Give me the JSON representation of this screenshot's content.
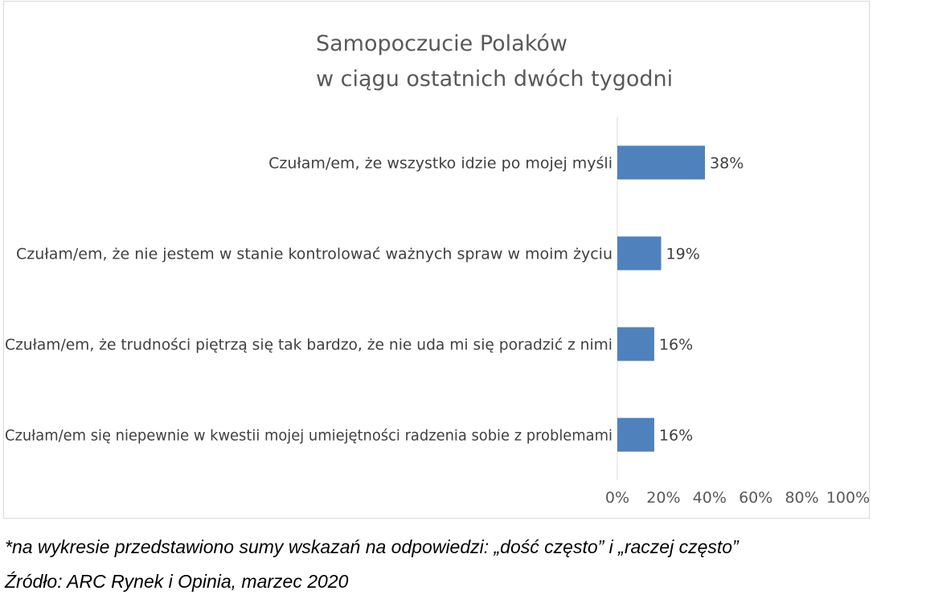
{
  "chart_data": {
    "type": "bar",
    "orientation": "horizontal",
    "title": [
      "Samopoczucie Polaków",
      "w ciągu ostatnich dwóch tygodni"
    ],
    "categories": [
      "Czułam/em, że wszystko idzie po mojej myśli",
      "Czułam/em, że nie jestem w stanie kontrolować ważnych spraw w moim życiu",
      "Czułam/em, że trudności piętrzą się tak bardzo, że nie uda mi się poradzić z nimi",
      "Czułam/em się niepewnie w kwestii mojej umiejętności radzenia sobie z problemami"
    ],
    "values": [
      38,
      19,
      16,
      16
    ],
    "data_labels": [
      "38%",
      "19%",
      "16%",
      "16%"
    ],
    "xlim": [
      0,
      100
    ],
    "x_ticks": [
      "0%",
      "20%",
      "40%",
      "60%",
      "80%",
      "100%"
    ],
    "grid": false,
    "bar_color": "#4f81bd"
  },
  "notes": {
    "footnote": "*na wykresie przedstawiono sumy wskazań na odpowiedzi: „dość często” i „raczej często”",
    "source": "Źródło: ARC Rynek i Opinia, marzec 2020"
  }
}
